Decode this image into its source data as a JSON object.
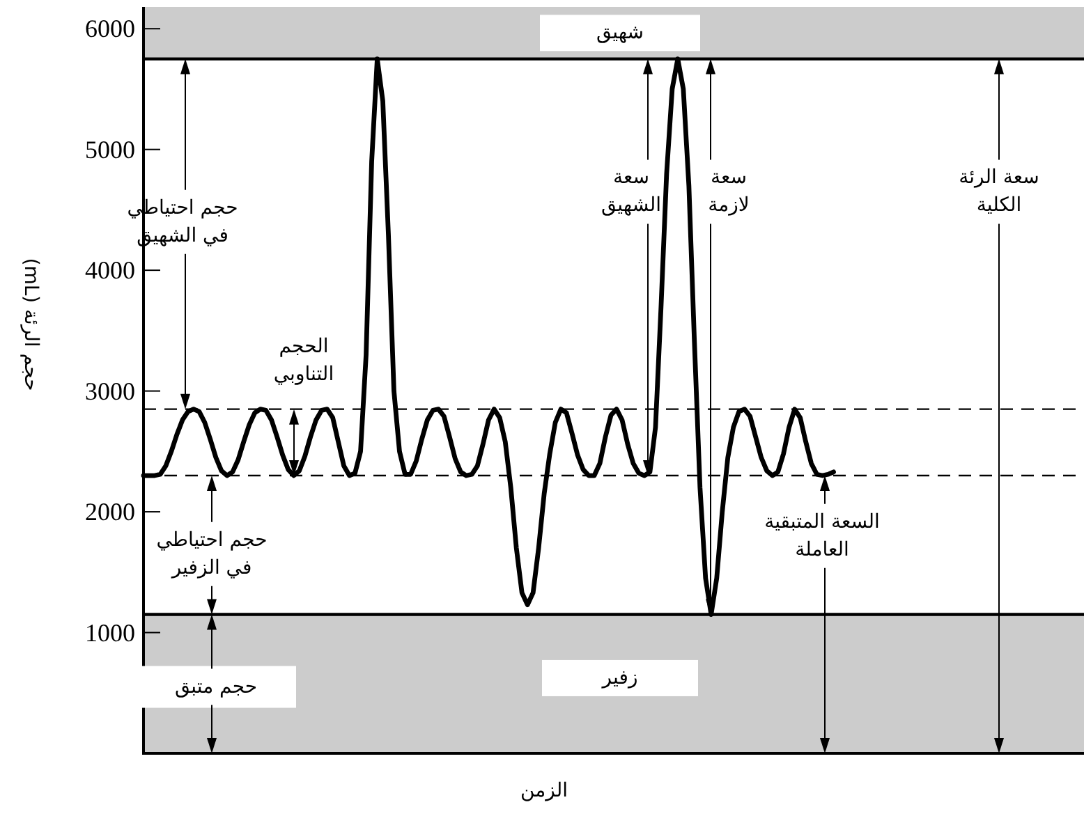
{
  "chart_data": {
    "type": "line",
    "xlabel": "الزمن",
    "ylabel": "حجم الرئة (mL)",
    "categories": [
      null,
      null,
      null,
      null,
      null,
      null,
      null,
      null,
      null,
      null,
      null,
      null,
      null,
      null,
      null,
      null,
      null,
      null,
      null,
      null,
      null,
      null,
      null,
      null,
      null,
      null,
      null,
      null,
      null,
      null,
      null,
      null,
      null,
      null,
      null,
      null,
      null,
      null,
      null,
      null,
      null,
      null,
      null,
      null,
      null,
      null,
      null,
      null,
      null,
      null,
      null,
      null,
      null,
      null,
      null,
      null,
      null,
      null,
      null,
      null,
      null,
      null,
      null,
      null,
      null,
      null,
      null,
      null,
      null,
      null,
      null,
      null,
      null,
      null,
      null,
      null,
      null,
      null,
      null,
      null,
      null,
      null,
      null,
      null,
      null,
      null,
      null,
      null,
      null,
      null,
      null,
      null,
      null,
      null,
      null,
      null,
      null,
      null,
      null,
      null,
      null,
      null,
      null,
      null,
      null,
      null,
      null,
      null,
      null,
      null,
      null,
      null,
      null,
      null,
      null,
      null,
      null,
      null,
      null,
      null,
      null,
      null,
      null,
      null,
      null,
      null,
      null,
      null,
      null,
      null,
      null,
      null,
      null,
      null,
      null,
      null,
      null,
      null,
      null,
      null,
      null,
      null,
      null,
      null,
      null,
      null,
      null,
      null,
      null,
      null,
      null,
      null,
      null,
      null,
      null,
      null,
      null,
      null,
      null,
      null,
      null,
      null,
      null,
      null,
      null,
      null,
      null,
      null,
      null,
      null
    ],
    "series": [
      {
        "color": "#000000",
        "values": [
          2300,
          2300,
          2300,
          2310,
          2380,
          2500,
          2640,
          2760,
          2830,
          2850,
          2830,
          2740,
          2600,
          2450,
          2340,
          2300,
          2330,
          2430,
          2580,
          2720,
          2820,
          2850,
          2840,
          2760,
          2620,
          2470,
          2350,
          2300,
          2340,
          2460,
          2620,
          2760,
          2840,
          2850,
          2780,
          2580,
          2380,
          2300,
          2320,
          2500,
          3300,
          4900,
          5750,
          5400,
          4300,
          3000,
          2500,
          2310,
          2310,
          2420,
          2600,
          2760,
          2840,
          2850,
          2790,
          2620,
          2440,
          2330,
          2300,
          2310,
          2380,
          2560,
          2760,
          2850,
          2780,
          2580,
          2200,
          1700,
          1330,
          1230,
          1330,
          1700,
          2150,
          2480,
          2740,
          2850,
          2820,
          2650,
          2470,
          2350,
          2300,
          2300,
          2400,
          2620,
          2800,
          2850,
          2760,
          2560,
          2400,
          2320,
          2300,
          2330,
          2700,
          3700,
          4800,
          5500,
          5750,
          5500,
          4700,
          3400,
          2200,
          1450,
          1150,
          1450,
          2000,
          2450,
          2700,
          2830,
          2850,
          2790,
          2620,
          2450,
          2340,
          2300,
          2330,
          2480,
          2700,
          2850,
          2780,
          2580,
          2400,
          2310,
          2300,
          2310,
          2330,
          null,
          null,
          null,
          null,
          null,
          null,
          null,
          null,
          null,
          null,
          null,
          null,
          null,
          null,
          null,
          null,
          null,
          null,
          null,
          null,
          null,
          null,
          null,
          null,
          null,
          null,
          null,
          null,
          null,
          null,
          null,
          null,
          null,
          null,
          null,
          null,
          null,
          null,
          null,
          null,
          null,
          null,
          null,
          null,
          null
        ]
      }
    ],
    "ylim": [
      0,
      6180
    ],
    "yticks": [
      1000,
      2000,
      3000,
      4000,
      5000,
      6000
    ],
    "tick_labels": "y",
    "ref_lines": [
      {
        "axis": "y",
        "value": 5750,
        "line_style": "solid",
        "color": "#000000"
      },
      {
        "axis": "y",
        "value": 2850,
        "line_style": "dashed",
        "color": "#000000"
      },
      {
        "axis": "y",
        "value": 2300,
        "line_style": "dashed",
        "color": "#000000"
      },
      {
        "axis": "y",
        "value": 1150,
        "line_style": "solid",
        "color": "#000000"
      }
    ],
    "bands": [
      {
        "axis": "y",
        "from": 5750,
        "to": 6180,
        "label": "شهيق",
        "color": "#cccccc"
      },
      {
        "axis": "y",
        "from": 0,
        "to": 1150,
        "label": "زفير",
        "color": "#cccccc"
      }
    ],
    "annotations": [
      "حجم احتياطي في الشهيق",
      "الحجم التناوبي",
      "حجم احتياطي في الزفير",
      "حجم متبق",
      "سعة الشهيق",
      "سعة لازمة",
      "سعة الرئة الكلية",
      "السعة المتبقية العاملة"
    ]
  }
}
